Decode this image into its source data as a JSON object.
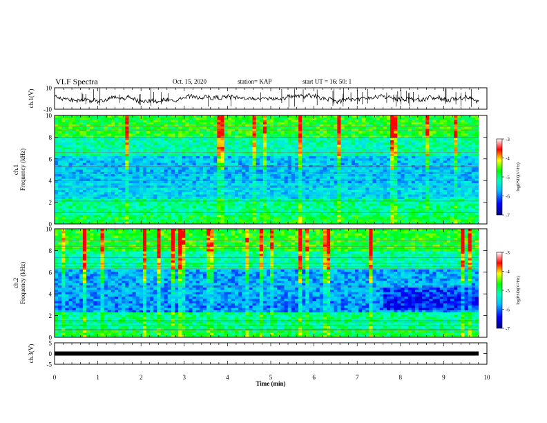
{
  "header": {
    "title": "VLF Spectra",
    "date": "Oct. 15, 2020",
    "station": "station= KAP",
    "start": "start  UT =   16: 50: 1"
  },
  "chart_data": [
    {
      "type": "line",
      "panel": "ch1-waveform",
      "ylabel": "ch.1(V)",
      "ylim": [
        -10,
        10
      ],
      "yticks": [
        "10",
        "-10"
      ],
      "xlim": [
        0,
        10
      ],
      "series": [
        {
          "values": [
            2,
            3,
            1,
            4,
            2,
            0,
            3,
            5,
            2,
            1,
            3,
            2,
            4,
            1,
            0,
            2,
            3,
            1,
            2,
            3
          ]
        }
      ]
    },
    {
      "type": "heatmap",
      "panel": "ch1-spectrogram",
      "ylabel": "ch.1\nFrequency (kHz)",
      "ylim": [
        0,
        10
      ],
      "yticks": [
        "0",
        "2",
        "4",
        "6",
        "8",
        "10"
      ],
      "xlim": [
        0,
        10
      ],
      "colorbar": {
        "label": "log(PSD)(V²/Hz)",
        "range": [
          -7,
          -3
        ],
        "ticks": [
          "-3",
          "-4",
          "-5",
          "-6",
          "-7"
        ]
      }
    },
    {
      "type": "heatmap",
      "panel": "ch2-spectrogram",
      "ylabel": "ch.2\nFrequency (kHz)",
      "ylim": [
        0,
        10
      ],
      "yticks": [
        "0",
        "2",
        "4",
        "6",
        "8",
        "10"
      ],
      "xlim": [
        0,
        10
      ],
      "colorbar": {
        "label": "log(PSD)(V²/Hz)",
        "range": [
          -7,
          -3
        ],
        "ticks": [
          "-3",
          "-4",
          "-5",
          "-6",
          "-7"
        ]
      }
    },
    {
      "type": "line",
      "panel": "ch3-waveform",
      "ylabel": "ch.3(V)",
      "ylim": [
        -5,
        5
      ],
      "yticks": [
        "5",
        "0",
        "-5"
      ],
      "xlim": [
        0,
        10
      ],
      "series": [
        {
          "values": [
            0,
            0,
            0,
            0,
            0,
            0,
            0,
            0,
            0,
            0
          ]
        }
      ]
    }
  ],
  "xaxis": {
    "label": "Time (min)",
    "ticks": [
      "0",
      "1",
      "2",
      "3",
      "4",
      "5",
      "6",
      "7",
      "8",
      "9",
      "10"
    ]
  },
  "colors": {
    "colormap": [
      "#00008b",
      "#0000ff",
      "#00bfff",
      "#00ffcc",
      "#00ff00",
      "#ffff00",
      "#ff0000",
      "#ffffff"
    ]
  }
}
